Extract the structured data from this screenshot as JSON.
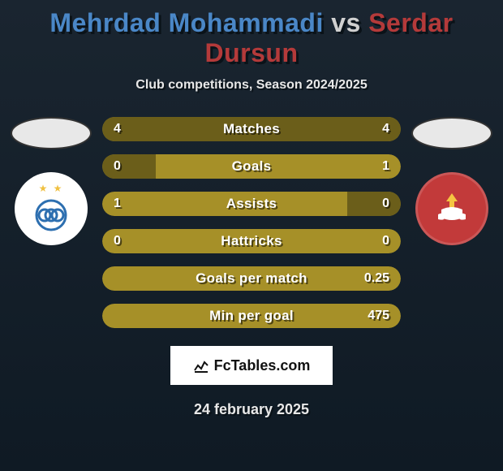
{
  "title": {
    "player1": "Mehrdad Mohammadi",
    "vs": "vs",
    "player2": "Serdar Dursun",
    "p1_color": "#4a87c7",
    "p2_color": "#b43a3a"
  },
  "subtitle": "Club competitions, Season 2024/2025",
  "left_side": {
    "flag_bg": "#e8e8e8",
    "crest_bg": "#ffffff",
    "crest_accent": "#2d6fb0"
  },
  "right_side": {
    "flag_bg": "#e8e8e8",
    "crest_bg": "#c23a3a",
    "crest_accent": "#f5c542"
  },
  "bars": {
    "track_color": "#a69028",
    "fill_color": "#6b5e1a",
    "text_color": "#ffffff",
    "rows": [
      {
        "label": "Matches",
        "left": "4",
        "right": "4",
        "lpct": 50,
        "rpct": 50
      },
      {
        "label": "Goals",
        "left": "0",
        "right": "1",
        "lpct": 18,
        "rpct": 0
      },
      {
        "label": "Assists",
        "left": "1",
        "right": "0",
        "lpct": 0,
        "rpct": 18
      },
      {
        "label": "Hattricks",
        "left": "0",
        "right": "0",
        "lpct": 0,
        "rpct": 0
      },
      {
        "label": "Goals per match",
        "left": "",
        "right": "0.25",
        "lpct": 0,
        "rpct": 0
      },
      {
        "label": "Min per goal",
        "left": "",
        "right": "475",
        "lpct": 0,
        "rpct": 0
      }
    ]
  },
  "watermark": "FcTables.com",
  "date": "24 february 2025"
}
